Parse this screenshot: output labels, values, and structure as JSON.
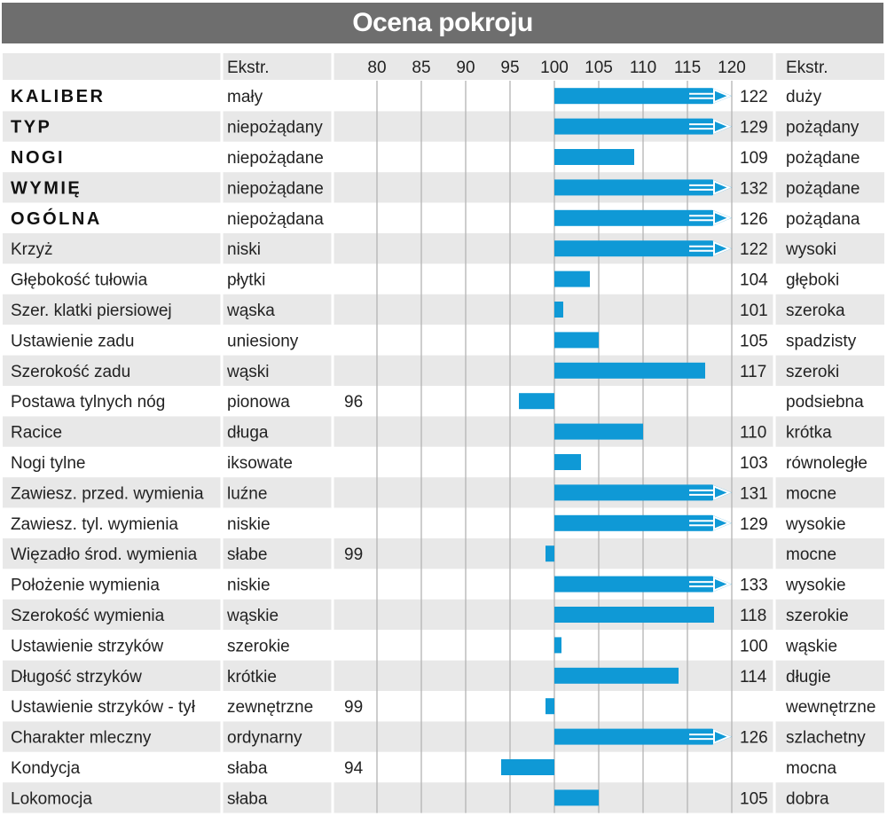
{
  "title": "Ocena pokroju",
  "header": {
    "left_ekstr": "Ekstr.",
    "right_ekstr": "Ekstr."
  },
  "colors": {
    "bar": "#0f99d6",
    "title_bg": "#6e6e6e",
    "row_alt": "#e8e8e8",
    "grid": "#b8b8b8",
    "arrow": "#ffffff"
  },
  "chart_data": {
    "type": "bar",
    "orientation": "horizontal",
    "baseline": 100,
    "xlim": [
      80,
      120
    ],
    "ticks": [
      80,
      85,
      90,
      95,
      100,
      105,
      110,
      115,
      120
    ],
    "grid": true,
    "overflow_indicator": "white arrow for values beyond 120",
    "rows": [
      {
        "trait": "KALIBER",
        "bold": true,
        "low": "mały",
        "high": "duży",
        "value": 122
      },
      {
        "trait": "TYP",
        "bold": true,
        "low": "niepożądany",
        "high": "pożądany",
        "value": 129
      },
      {
        "trait": "NOGI",
        "bold": true,
        "low": "niepożądane",
        "high": "pożądane",
        "value": 109
      },
      {
        "trait": "WYMIĘ",
        "bold": true,
        "low": "niepożądane",
        "high": "pożądane",
        "value": 132
      },
      {
        "trait": "OGÓLNA",
        "bold": true,
        "low": "niepożądana",
        "high": "pożądana",
        "value": 126
      },
      {
        "trait": "Krzyż",
        "bold": false,
        "low": "niski",
        "high": "wysoki",
        "value": 122
      },
      {
        "trait": "Głębokość tułowia",
        "bold": false,
        "low": "płytki",
        "high": "głęboki",
        "value": 104
      },
      {
        "trait": "Szer. klatki piersiowej",
        "bold": false,
        "low": "wąska",
        "high": "szeroka",
        "value": 101
      },
      {
        "trait": "Ustawienie zadu",
        "bold": false,
        "low": "uniesiony",
        "high": "spadzisty",
        "value": 105
      },
      {
        "trait": "Szerokość zadu",
        "bold": false,
        "low": "wąski",
        "high": "szeroki",
        "value": 117
      },
      {
        "trait": "Postawa tylnych nóg",
        "bold": false,
        "low": "pionowa",
        "high": "podsiebna",
        "value": 96
      },
      {
        "trait": "Racice",
        "bold": false,
        "low": "długa",
        "high": "krótka",
        "value": 110
      },
      {
        "trait": "Nogi tylne",
        "bold": false,
        "low": "iksowate",
        "high": "równoległe",
        "value": 103
      },
      {
        "trait": "Zawiesz. przed. wymienia",
        "bold": false,
        "low": "luźne",
        "high": "mocne",
        "value": 131
      },
      {
        "trait": "Zawiesz. tyl. wymienia",
        "bold": false,
        "low": "niskie",
        "high": "wysokie",
        "value": 129
      },
      {
        "trait": "Więzadło środ. wymienia",
        "bold": false,
        "low": "słabe",
        "high": "mocne",
        "value": 99
      },
      {
        "trait": "Położenie wymienia",
        "bold": false,
        "low": "niskie",
        "high": "wysokie",
        "value": 133
      },
      {
        "trait": "Szerokość wymienia",
        "bold": false,
        "low": "wąskie",
        "high": "szerokie",
        "value": 118
      },
      {
        "trait": "Ustawienie strzyków",
        "bold": false,
        "low": "szerokie",
        "high": "wąskie",
        "value": 100
      },
      {
        "trait": "Długość strzyków",
        "bold": false,
        "low": "krótkie",
        "high": "długie",
        "value": 114
      },
      {
        "trait": "Ustawienie strzyków - tył",
        "bold": false,
        "low": "zewnętrzne",
        "high": "wewnętrzne",
        "value": 99
      },
      {
        "trait": "Charakter mleczny",
        "bold": false,
        "low": "ordynarny",
        "high": "szlachetny",
        "value": 126
      },
      {
        "trait": "Kondycja",
        "bold": false,
        "low": "słaba",
        "high": "mocna",
        "value": 94
      },
      {
        "trait": "Lokomocja",
        "bold": false,
        "low": "słaba",
        "high": "dobra",
        "value": 105
      }
    ]
  }
}
